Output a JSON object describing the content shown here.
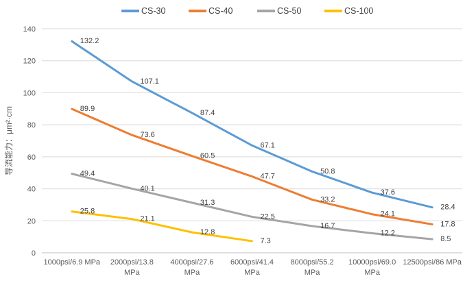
{
  "chart_data": {
    "type": "line",
    "title": "",
    "xlabel": "",
    "ylabel": "导流能力：μm²·cm",
    "ylim": [
      0,
      140
    ],
    "yticks": [
      0,
      20,
      40,
      60,
      80,
      100,
      120,
      140
    ],
    "grid": true,
    "legend_position": "top",
    "categories": [
      [
        "1000psi/6.9 MPa"
      ],
      [
        "2000psi/13.8",
        "MPa"
      ],
      [
        "4000psi/27.6",
        "MPa"
      ],
      [
        "6000psi/41.4",
        "MPa"
      ],
      [
        "8000psi/55.2",
        "MPa"
      ],
      [
        "10000psi/69.0",
        "MPa"
      ],
      [
        "12500psi/86 MPa"
      ]
    ],
    "series": [
      {
        "name": "CS-30",
        "color": "#5B9BD5",
        "values": [
          132.2,
          107.1,
          87.4,
          67.1,
          50.8,
          37.6,
          28.4
        ]
      },
      {
        "name": "CS-40",
        "color": "#ED7D31",
        "values": [
          89.9,
          73.6,
          60.5,
          47.7,
          33.2,
          24.1,
          17.8
        ]
      },
      {
        "name": "CS-50",
        "color": "#A5A5A5",
        "values": [
          49.4,
          40.1,
          31.3,
          22.5,
          16.7,
          12.2,
          8.5
        ]
      },
      {
        "name": "CS-100",
        "color": "#FFC000",
        "values": [
          25.8,
          21.1,
          12.8,
          7.3
        ]
      }
    ],
    "colors": {
      "gridline": "#D9D9D9",
      "axis_line": "#BFBFBF",
      "tick_text": "#595959",
      "data_label_text": "#404040",
      "legend_text": "#404040",
      "background": "#FFFFFF"
    }
  }
}
